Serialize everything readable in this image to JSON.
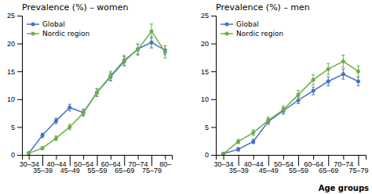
{
  "chart_data": [
    {
      "type": "line",
      "title": "Prevalence (%) – women",
      "categories": [
        "30–34",
        "35–39",
        "40–44",
        "45–49",
        "50–54",
        "55–59",
        "60–64",
        "65–69",
        "70–74",
        "75–79",
        "80–"
      ],
      "series": [
        {
          "name": "Global",
          "color": "#4472c4",
          "marker": "circle",
          "line_style": "solid",
          "values": [
            0.3,
            3.5,
            6.1,
            8.5,
            7.6,
            11.2,
            14.0,
            16.8,
            19.0,
            20.2,
            18.8
          ],
          "errors": [
            0.2,
            0.4,
            0.5,
            0.6,
            0.6,
            0.7,
            0.7,
            0.8,
            0.9,
            1.0,
            0.8
          ]
        },
        {
          "name": "Nordic region",
          "color": "#70ad47",
          "marker": "circle",
          "line_style": "solid",
          "values": [
            0.3,
            1.2,
            3.0,
            5.0,
            7.5,
            11.2,
            14.2,
            17.0,
            18.9,
            22.2,
            18.5
          ],
          "errors": [
            0.2,
            0.3,
            0.4,
            0.5,
            0.5,
            0.6,
            0.8,
            0.9,
            1.0,
            1.3,
            1.1
          ]
        }
      ],
      "ylim": [
        0,
        25
      ],
      "yticks": [
        0,
        5,
        10,
        15,
        20,
        25
      ],
      "grid": false,
      "legend": "upper left"
    },
    {
      "type": "line",
      "title": "Prevalence (%) – men",
      "xlabel": "Age groups",
      "categories": [
        "30–34",
        "35–39",
        "40–44",
        "45–49",
        "50–54",
        "55–59",
        "60–64",
        "65–69",
        "70–74",
        "75–79"
      ],
      "series": [
        {
          "name": "Global",
          "color": "#4472c4",
          "marker": "circle",
          "line_style": "solid",
          "values": [
            0.2,
            1.0,
            2.4,
            6.0,
            7.9,
            9.8,
            11.5,
            13.2,
            14.5,
            13.2
          ],
          "errors": [
            0.1,
            0.3,
            0.4,
            0.5,
            0.6,
            0.6,
            0.7,
            0.8,
            0.9,
            0.8
          ]
        },
        {
          "name": "Nordic region",
          "color": "#70ad47",
          "marker": "circle",
          "line_style": "solid",
          "values": [
            0.2,
            2.4,
            4.0,
            6.2,
            8.1,
            10.8,
            13.5,
            15.4,
            16.8,
            15.0
          ],
          "errors": [
            0.1,
            0.4,
            0.5,
            0.6,
            0.7,
            0.8,
            0.9,
            1.0,
            1.1,
            1.0
          ]
        }
      ],
      "ylim": [
        0,
        25
      ],
      "yticks": [
        0,
        5,
        10,
        15,
        20,
        25
      ],
      "grid": false,
      "legend": "upper left"
    }
  ]
}
